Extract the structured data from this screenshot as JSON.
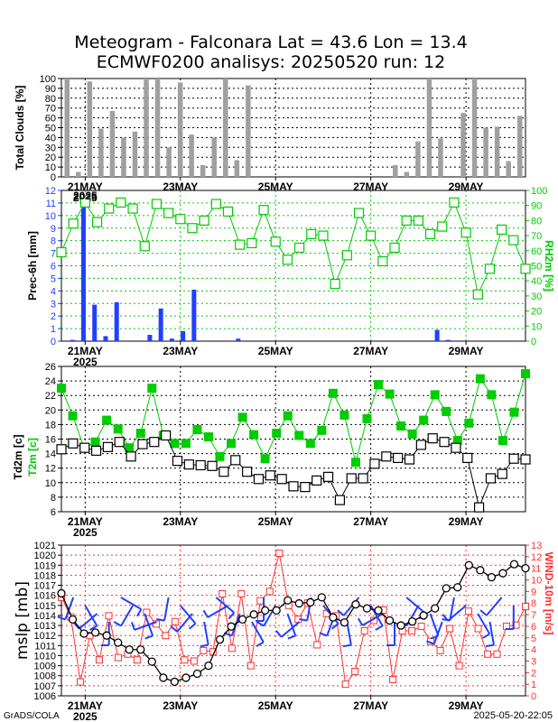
{
  "title_line1": "Meteogram - Falconara Lat = 43.6 Lon = 13.4",
  "title_line2": "ECMWF0200 analisys: 20250520 run: 12",
  "footer_left": "GrADS/COLA",
  "footer_right": "2025-05-20-22:05",
  "x_axis": {
    "type": "time-6h",
    "n_steps": 40,
    "tick_labels": [
      "21MAY",
      "23MAY",
      "25MAY",
      "27MAY",
      "29MAY"
    ],
    "tick_steps": [
      2,
      10,
      18,
      26,
      34
    ],
    "year_label": "2025"
  },
  "colors": {
    "green": "#00cc00",
    "blue": "#2040ff",
    "red": "#ff3030",
    "gray": "#a0a0a0",
    "black": "#000000"
  },
  "chart_data": [
    {
      "type": "bar",
      "ylabel": "Total Clouds [%]",
      "ylim": [
        0,
        100
      ],
      "yticks": [
        0,
        10,
        20,
        30,
        40,
        50,
        60,
        70,
        80,
        90,
        100
      ],
      "values": [
        100,
        5,
        97,
        49,
        67,
        40,
        46,
        100,
        100,
        30,
        96,
        43,
        12,
        40,
        100,
        17,
        93,
        0,
        0,
        0,
        0,
        0,
        0,
        0,
        0,
        0,
        0,
        0,
        0,
        12,
        5,
        36,
        100,
        39,
        0,
        65,
        100,
        50,
        51,
        16,
        62
      ]
    },
    {
      "type": "bar+line",
      "ylabel": "Prec-6h [mm]",
      "ylabel_right": "RH2m [%]",
      "ylim": [
        0,
        12
      ],
      "yticks": [
        0,
        1,
        2,
        3,
        4,
        5,
        6,
        7,
        8,
        9,
        10,
        11,
        12
      ],
      "ylim_right": [
        0,
        100
      ],
      "yticks_right": [
        0,
        10,
        20,
        30,
        40,
        50,
        60,
        70,
        80,
        90,
        100
      ],
      "series": [
        {
          "name": "Prec-6h",
          "values": [
            0.1,
            11.3,
            2.9,
            0.4,
            3.1,
            0,
            0,
            0.5,
            2.6,
            0.2,
            0.8,
            4.1,
            0,
            0,
            0,
            0.2,
            0,
            0,
            0,
            0,
            0,
            0,
            0,
            0,
            0,
            0,
            0,
            0,
            0,
            0,
            0,
            0,
            0,
            0.9,
            0.1,
            0,
            0,
            0,
            0,
            0,
            0
          ]
        },
        {
          "name": "RH2m",
          "values": [
            59,
            78,
            92,
            79,
            88,
            92,
            88,
            63,
            91,
            85,
            81,
            75,
            80,
            91,
            86,
            64,
            65,
            87,
            66,
            54,
            62,
            71,
            70,
            38,
            57,
            85,
            70,
            53,
            62,
            80,
            80,
            71,
            76,
            92,
            72,
            31,
            48,
            74,
            67,
            48
          ]
        }
      ]
    },
    {
      "type": "line",
      "ylabel": "Td2m [c]",
      "ylabel2": "T2m [c]",
      "ylim": [
        6,
        26
      ],
      "yticks": [
        6,
        8,
        10,
        12,
        14,
        16,
        18,
        20,
        22,
        24,
        26
      ],
      "series": [
        {
          "name": "T2m",
          "values": [
            23,
            19.2,
            14.8,
            15.6,
            18.6,
            17.4,
            14.8,
            16.8,
            23,
            16.5,
            15.4,
            15.4,
            17.3,
            16.3,
            13.6,
            15.4,
            19,
            16.6,
            13.3,
            16.8,
            19.2,
            16.5,
            15.4,
            17.2,
            22.3,
            19.3,
            12.8,
            18.8,
            23.5,
            22.2,
            17.8,
            16.7,
            18.6,
            22.1,
            19.8,
            15.8,
            18.2,
            24.3,
            22.1,
            15.8,
            19.7,
            25
          ]
        },
        {
          "name": "Td2m",
          "values": [
            14.6,
            15.4,
            14.8,
            14.4,
            14.9,
            15.6,
            13.6,
            15.3,
            15.6,
            16.5,
            13,
            12.5,
            12.4,
            12.3,
            11.5,
            13.1,
            11.5,
            10.5,
            11,
            10.5,
            9.5,
            9.4,
            10.3,
            10.8,
            7.6,
            10.6,
            10.6,
            12.6,
            13.6,
            13.4,
            13.2,
            15.2,
            16.1,
            15.6,
            14.8,
            13.4,
            6.6,
            10.6,
            11.2,
            13.3,
            13.2
          ]
        }
      ]
    },
    {
      "type": "line+barbs",
      "ylabel": "mslp [mb]",
      "ylabel_right": "WIND-10m [m/s]",
      "ylim": [
        1006,
        1021
      ],
      "yticks": [
        1006,
        1007,
        1008,
        1009,
        1010,
        1011,
        1012,
        1013,
        1014,
        1015,
        1016,
        1017,
        1018,
        1019,
        1020,
        1021
      ],
      "ylim_right": [
        0,
        13
      ],
      "yticks_right": [
        0,
        1,
        2,
        3,
        4,
        5,
        6,
        7,
        8,
        9,
        10,
        11,
        12,
        13
      ],
      "series": [
        {
          "name": "mslp",
          "values": [
            1016.2,
            1013.6,
            1012.2,
            1012.3,
            1012.0,
            1011.3,
            1010.6,
            1010.6,
            1009.4,
            1007.8,
            1007.4,
            1007.8,
            1008.2,
            1009.0,
            1011.6,
            1012.9,
            1013.6,
            1014.1,
            1014.5,
            1014.5,
            1015.5,
            1015.2,
            1015.3,
            1015.8,
            1013.8,
            1013.3,
            1015.1,
            1014.7,
            1014.5,
            1013.5,
            1013.0,
            1013.4,
            1014.0,
            1014.7,
            1016.7,
            1016.8,
            1019.0,
            1018.5,
            1017.8,
            1018.2,
            1019.1,
            1018.7
          ]
        },
        {
          "name": "WIND-10m",
          "values": [
            8.5,
            6.8,
            1.2,
            5.2,
            3.1,
            6.9,
            3.3,
            3.6,
            3.1,
            7.2,
            6.2,
            5.2,
            6.4,
            3.1,
            3.0,
            3.9,
            3.8,
            8.8,
            4.1,
            8.8,
            2.6,
            8.2,
            9.0,
            12.3,
            7.8,
            6.6,
            8.0,
            4.4,
            7.1,
            6.9,
            1.0,
            2.1,
            5.6,
            6.5,
            7.4,
            1.4,
            5.6,
            5.6,
            6.0,
            4.7,
            3.9,
            5.8,
            2.6,
            7.3,
            5.8,
            3.6,
            3.6,
            6.0,
            6.1,
            7.7
          ]
        }
      ]
    }
  ]
}
